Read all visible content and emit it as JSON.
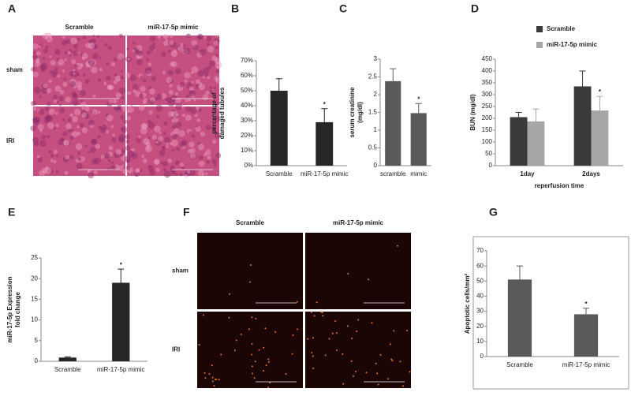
{
  "image_panels": [
    {
      "panel": "A",
      "columns": [
        "Scramble",
        "miR-17-5p mimic"
      ],
      "rows": [
        "sham",
        "IRI"
      ]
    },
    {
      "panel": "F",
      "columns": [
        "Scramble",
        "miR-17-5p mimic"
      ],
      "rows": [
        "sham",
        "IRI"
      ]
    }
  ],
  "chart_data": [
    {
      "type": "bar",
      "panel": "B",
      "categories": [
        "Scramble",
        "miR-17-5p mimic"
      ],
      "values": [
        50,
        29
      ],
      "errors": [
        8,
        9
      ],
      "color": "#262626",
      "ylim": [
        0,
        70
      ],
      "yticks": [
        {
          "value": 0,
          "label": "0%"
        },
        {
          "value": 10,
          "label": "10%"
        },
        {
          "value": 20,
          "label": "20%"
        },
        {
          "value": 30,
          "label": "30%"
        },
        {
          "value": 40,
          "label": "40%"
        },
        {
          "value": 50,
          "label": "50%"
        },
        {
          "value": 60,
          "label": "60%"
        },
        {
          "value": 70,
          "label": "70%"
        }
      ],
      "ylabel": [
        "percentage of",
        "damaged tubules"
      ],
      "annotation": "*"
    },
    {
      "type": "bar",
      "panel": "C",
      "categories": [
        "scramble",
        "mimic"
      ],
      "values": [
        2.38,
        1.48
      ],
      "errors": [
        0.35,
        0.27
      ],
      "color": "#595959",
      "ylim": [
        0,
        3
      ],
      "yticks": [
        0,
        0.5,
        1,
        1.5,
        2,
        2.5,
        3
      ],
      "ylabel": [
        "serum creatinine",
        "(mg/dl)"
      ],
      "annotation": "*"
    },
    {
      "type": "bar",
      "panel": "D",
      "categories": [
        "1day",
        "2days"
      ],
      "series": [
        {
          "name": "Scramble",
          "color": "#3a3a3a",
          "values": [
            205,
            335
          ],
          "errors": [
            20,
            65
          ]
        },
        {
          "name": "miR-17-5p mimic",
          "color": "#a6a6a6",
          "values": [
            187,
            233
          ],
          "errors": [
            52,
            60
          ]
        }
      ],
      "ylim": [
        0,
        450
      ],
      "yticks": [
        0,
        50,
        100,
        150,
        200,
        250,
        300,
        350,
        400,
        450
      ],
      "ylabel": [
        "BUN (mg/dl)"
      ],
      "xlabel": "reperfusion time",
      "annotation": "*",
      "legend": "top"
    },
    {
      "type": "bar",
      "panel": "E",
      "categories": [
        "Scramble",
        "miR-17-5p mimic"
      ],
      "values": [
        0.9,
        19
      ],
      "errors": [
        0.15,
        3.3
      ],
      "color": "#262626",
      "ylim": [
        0,
        25
      ],
      "yticks": [
        0,
        5,
        10,
        15,
        20,
        25
      ],
      "ylabel": [
        "miR-17-5p Expression",
        "fold change"
      ],
      "annotation": "*"
    },
    {
      "type": "bar",
      "panel": "G",
      "categories": [
        "Scramble",
        "miR-17-5p mimic"
      ],
      "values": [
        51,
        28
      ],
      "errors": [
        9,
        4
      ],
      "color": "#595959",
      "ylim": [
        0,
        70
      ],
      "yticks": [
        0,
        10,
        20,
        30,
        40,
        50,
        60,
        70
      ],
      "ylabel": [
        "Apoptotic cells/mm²"
      ],
      "annotation": "*"
    }
  ]
}
